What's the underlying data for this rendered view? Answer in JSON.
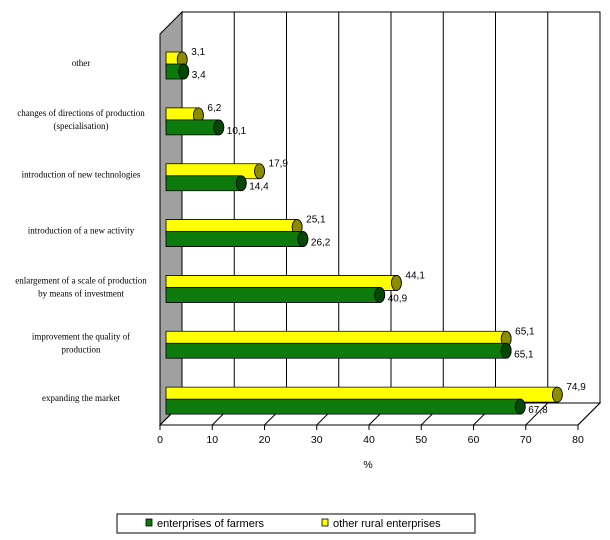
{
  "chart_data": {
    "type": "bar",
    "orientation": "horizontal",
    "style": "3d-cylinder",
    "categories": [
      [
        "other"
      ],
      [
        "changes of directions of production",
        "(specialisation)"
      ],
      [
        "introduction of new technologies"
      ],
      [
        "introduction of a new activity"
      ],
      [
        "enlargement of a scale of production",
        "by means of investment"
      ],
      [
        "improvement the quality of",
        "production"
      ],
      [
        "expanding the market"
      ]
    ],
    "series": [
      {
        "name": "enterprises of farmers",
        "color": "#0c7a0c",
        "dark": "#064806",
        "values": [
          3.4,
          10.1,
          14.4,
          26.2,
          40.9,
          65.1,
          67.8
        ],
        "labels": [
          "3,4",
          "10,1",
          "14,4",
          "26,2",
          "40,9",
          "65,1",
          "67,8"
        ]
      },
      {
        "name": "other rural enterprises",
        "color": "#ffff00",
        "dark": "#8c8c00",
        "values": [
          3.1,
          6.2,
          17.9,
          25.1,
          44.1,
          65.1,
          74.9
        ],
        "labels": [
          "3,1",
          "6,2",
          "17,9",
          "25,1",
          "44,1",
          "65,1",
          "74,9"
        ]
      }
    ],
    "xlabel": "%",
    "xlim": [
      0,
      80
    ],
    "xticks": [
      "0",
      "10",
      "20",
      "30",
      "40",
      "50",
      "60",
      "70",
      "80"
    ],
    "grid": true,
    "legend_position": "bottom"
  }
}
